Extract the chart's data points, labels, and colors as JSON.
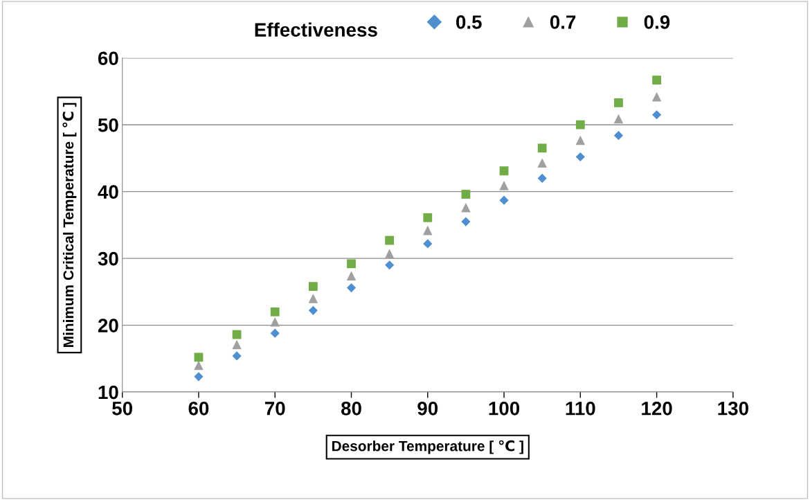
{
  "chart_data": {
    "type": "scatter",
    "xlabel": "Desorber Temperature [ ℃ ]",
    "ylabel": "Minimum Critical Temperature [ ℃ ]",
    "legend_title": "Effectiveness",
    "x": [
      60,
      65,
      70,
      75,
      80,
      85,
      90,
      95,
      100,
      105,
      110,
      115,
      120
    ],
    "series": [
      {
        "name": "0.5",
        "color": "#4f8fcf",
        "marker": "diamond",
        "values": [
          12.3,
          15.4,
          18.8,
          22.2,
          25.6,
          29.0,
          32.2,
          35.5,
          38.7,
          42.0,
          45.2,
          48.4,
          51.5
        ]
      },
      {
        "name": "0.7",
        "color": "#a0a0a0",
        "marker": "triangle",
        "values": [
          14.0,
          17.1,
          20.5,
          24.0,
          27.4,
          30.7,
          34.2,
          37.6,
          40.9,
          44.3,
          47.7,
          50.9,
          54.2
        ]
      },
      {
        "name": "0.9",
        "color": "#70ad47",
        "marker": "square",
        "values": [
          15.2,
          18.6,
          22.0,
          25.8,
          29.2,
          32.7,
          36.1,
          39.6,
          43.1,
          46.5,
          50.0,
          53.3,
          56.7
        ]
      }
    ],
    "xlim": [
      50,
      130
    ],
    "xticks": [
      50,
      60,
      70,
      80,
      90,
      100,
      110,
      120,
      130
    ],
    "ylim": [
      10,
      60
    ],
    "yticks": [
      10,
      20,
      30,
      40,
      50,
      60
    ],
    "grid": "y",
    "legend": "top"
  }
}
